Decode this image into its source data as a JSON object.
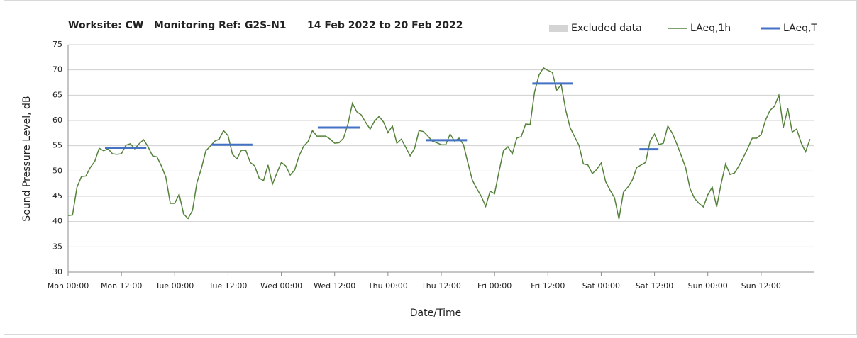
{
  "chart_data": {
    "type": "line",
    "title": "Worksite: CW   Monitoring Ref: G2S-N1",
    "subtitle": "14 Feb 2022 to 20 Feb 2022",
    "x_label": "Date/Time",
    "y_label": "Sound Pressure Level, dB",
    "xlim": [
      0,
      168
    ],
    "xticks": [
      {
        "value": 0,
        "label": "Mon 00:00"
      },
      {
        "value": 12,
        "label": "Mon 12:00"
      },
      {
        "value": 24,
        "label": "Tue 00:00"
      },
      {
        "value": 36,
        "label": "Tue 12:00"
      },
      {
        "value": 48,
        "label": "Wed 00:00"
      },
      {
        "value": 60,
        "label": "Wed 12:00"
      },
      {
        "value": 72,
        "label": "Thu 00:00"
      },
      {
        "value": 84,
        "label": "Thu 12:00"
      },
      {
        "value": 96,
        "label": "Fri 00:00"
      },
      {
        "value": 108,
        "label": "Fri 12:00"
      },
      {
        "value": 120,
        "label": "Sat 00:00"
      },
      {
        "value": 132,
        "label": "Sat 12:00"
      },
      {
        "value": 144,
        "label": "Sun 00:00"
      },
      {
        "value": 156,
        "label": "Sun 12:00"
      }
    ],
    "ylim": [
      30,
      75
    ],
    "yticks": [
      30,
      35,
      40,
      45,
      50,
      55,
      60,
      65,
      70,
      75
    ],
    "grid": true,
    "excluded_data": {
      "name": "Excluded data",
      "color": "#d4d4d4"
    },
    "series": [
      {
        "name": "LAeq,1h",
        "color": "#55823a",
        "x": [
          0,
          1,
          2,
          3,
          4,
          5,
          6,
          7,
          8,
          9,
          10,
          11,
          12,
          13,
          14,
          15,
          16,
          17,
          18,
          19,
          20,
          21,
          22,
          23,
          24,
          25,
          26,
          27,
          28,
          29,
          30,
          31,
          32,
          33,
          34,
          35,
          36,
          37,
          38,
          39,
          40,
          41,
          42,
          43,
          44,
          45,
          46,
          47,
          48,
          49,
          50,
          51,
          52,
          53,
          54,
          55,
          56,
          57,
          58,
          59,
          60,
          61,
          62,
          63,
          64,
          65,
          66,
          67,
          68,
          69,
          70,
          71,
          72,
          73,
          74,
          75,
          76,
          77,
          78,
          79,
          80,
          81,
          82,
          83,
          84,
          85,
          86,
          87,
          88,
          89,
          90,
          91,
          92,
          93,
          94,
          95,
          96,
          97,
          98,
          99,
          100,
          101,
          102,
          103,
          104,
          105,
          106,
          107,
          108,
          109,
          110,
          111,
          112,
          113,
          114,
          115,
          116,
          117,
          118,
          119,
          120,
          121,
          122,
          123,
          124,
          125,
          126,
          127,
          128,
          129,
          130,
          131,
          132,
          133,
          134,
          135,
          136,
          137,
          138,
          139,
          140,
          141,
          142,
          143,
          144,
          145,
          146,
          147,
          148,
          149,
          150,
          151,
          152,
          153,
          154,
          155,
          156,
          157,
          158,
          159,
          160,
          161,
          162,
          163,
          164,
          165,
          166,
          167
        ],
        "values": [
          41.2,
          41.3,
          46.8,
          48.9,
          49.0,
          50.7,
          51.9,
          54.5,
          54.0,
          54.4,
          53.4,
          53.3,
          53.4,
          55.1,
          55.4,
          54.4,
          55.4,
          56.2,
          54.8,
          53.0,
          52.8,
          51.0,
          48.8,
          43.6,
          43.6,
          45.4,
          41.5,
          40.6,
          42.2,
          47.7,
          50.5,
          54.0,
          54.9,
          55.9,
          56.3,
          58.0,
          57.0,
          53.3,
          52.4,
          54.1,
          54.1,
          51.7,
          51.0,
          48.6,
          48.1,
          51.2,
          47.4,
          49.6,
          51.7,
          51.0,
          49.2,
          50.2,
          53.0,
          54.9,
          55.8,
          58.0,
          56.9,
          56.9,
          56.9,
          56.3,
          55.5,
          55.6,
          56.5,
          59.3,
          63.4,
          61.7,
          61.1,
          59.6,
          58.3,
          59.9,
          60.8,
          59.7,
          57.6,
          58.9,
          55.5,
          56.3,
          54.7,
          53.0,
          54.5,
          58.0,
          57.8,
          56.9,
          55.9,
          55.6,
          55.2,
          55.2,
          57.3,
          55.9,
          56.5,
          55.2,
          51.6,
          48.2,
          46.5,
          45.0,
          43.0,
          46.0,
          45.5,
          49.9,
          54.0,
          54.8,
          53.4,
          56.5,
          56.8,
          59.3,
          59.2,
          65.6,
          69.0,
          70.4,
          69.9,
          69.5,
          66.0,
          67.1,
          62.1,
          58.6,
          56.8,
          55.1,
          51.4,
          51.2,
          49.5,
          50.3,
          51.6,
          47.9,
          46.2,
          44.7,
          40.5,
          45.8,
          46.8,
          48.2,
          50.7,
          51.2,
          51.7,
          55.9,
          57.3,
          55.2,
          55.5,
          58.9,
          57.5,
          55.4,
          53.1,
          50.7,
          46.5,
          44.6,
          43.6,
          42.9,
          45.3,
          46.8,
          42.9,
          47.5,
          51.4,
          49.3,
          49.6,
          51.0,
          52.7,
          54.5,
          56.5,
          56.5,
          57.2,
          60.1,
          62.0,
          62.8,
          65.0,
          58.6,
          62.4,
          57.7,
          58.3,
          55.6,
          53.8,
          56.3
        ]
      },
      {
        "name": "LAeq,T",
        "color": "#4472c4",
        "segments": [
          {
            "x": [
              8.3,
              17.6
            ],
            "value": 54.6
          },
          {
            "x": [
              32.3,
              41.5
            ],
            "value": 55.2
          },
          {
            "x": [
              56.2,
              65.8
            ],
            "value": 58.6
          },
          {
            "x": [
              80.5,
              89.8
            ],
            "value": 56.1
          },
          {
            "x": [
              104.5,
              113.7
            ],
            "value": 67.3
          },
          {
            "x": [
              128.6,
              132.9
            ],
            "value": 54.3
          }
        ]
      }
    ]
  }
}
